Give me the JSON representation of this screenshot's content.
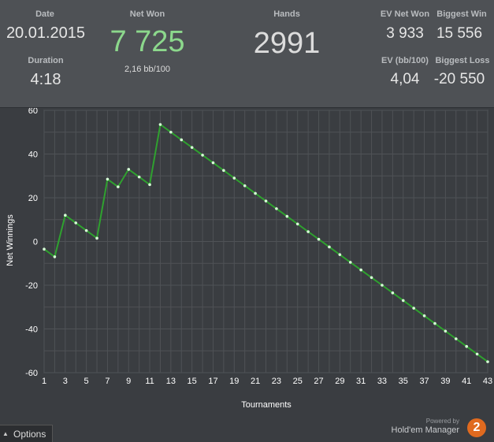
{
  "stats": {
    "date_label": "Date",
    "date_value": "20.01.2015",
    "duration_label": "Duration",
    "duration_value": "4:18",
    "net_won_label": "Net Won",
    "net_won_value": "7 725",
    "bb_per_100": "2,16 bb/100",
    "hands_label": "Hands",
    "hands_value": "2991",
    "ev_net_won_label": "EV Net Won",
    "ev_net_won_value": "3 933",
    "ev_bb_label": "EV (bb/100)",
    "ev_bb_value": "4,04",
    "biggest_win_label": "Biggest Win",
    "biggest_win_value": "15 556",
    "biggest_loss_label": "Biggest Loss",
    "biggest_loss_value": "-20 550"
  },
  "colors": {
    "net_won": "#8cd88c",
    "line": "#2fa12f",
    "marker": "#d7ffd7"
  },
  "options_label": "Options",
  "brand": {
    "powered_by": "Powered by",
    "name": "Hold'em Manager",
    "badge": "2"
  },
  "chart_data": {
    "type": "line",
    "xlabel": "Tournaments",
    "ylabel": "Net Winnings",
    "xlim": [
      1,
      43
    ],
    "ylim": [
      -60,
      60
    ],
    "x_ticks": [
      1,
      3,
      5,
      7,
      9,
      11,
      13,
      15,
      17,
      19,
      21,
      23,
      25,
      27,
      29,
      31,
      33,
      35,
      37,
      39,
      41,
      43
    ],
    "y_ticks": [
      -60,
      -40,
      -20,
      0,
      20,
      40,
      60
    ],
    "grid": true,
    "series": [
      {
        "x": [
          1,
          2,
          3,
          4,
          5,
          6,
          7,
          8,
          9,
          10,
          11,
          12,
          13,
          14,
          15,
          16,
          17,
          18,
          19,
          20,
          21,
          22,
          23,
          24,
          25,
          26,
          27,
          28,
          29,
          30,
          31,
          32,
          33,
          34,
          35,
          36,
          37,
          38,
          39,
          40,
          41,
          42,
          43
        ],
        "values": [
          -3.5,
          -7,
          12,
          8.5,
          5,
          1.5,
          28.5,
          25,
          33,
          29.5,
          26,
          53.5,
          50,
          46.5,
          43,
          39.5,
          36,
          32.5,
          29,
          25.5,
          22,
          18.5,
          15,
          11.5,
          8,
          4.5,
          1,
          -2.5,
          -6,
          -9.5,
          -13,
          -16.5,
          -20,
          -23.5,
          -27,
          -30.5,
          -34,
          -37.5,
          -41,
          -44.5,
          -48,
          -51.5,
          -55
        ]
      }
    ]
  }
}
